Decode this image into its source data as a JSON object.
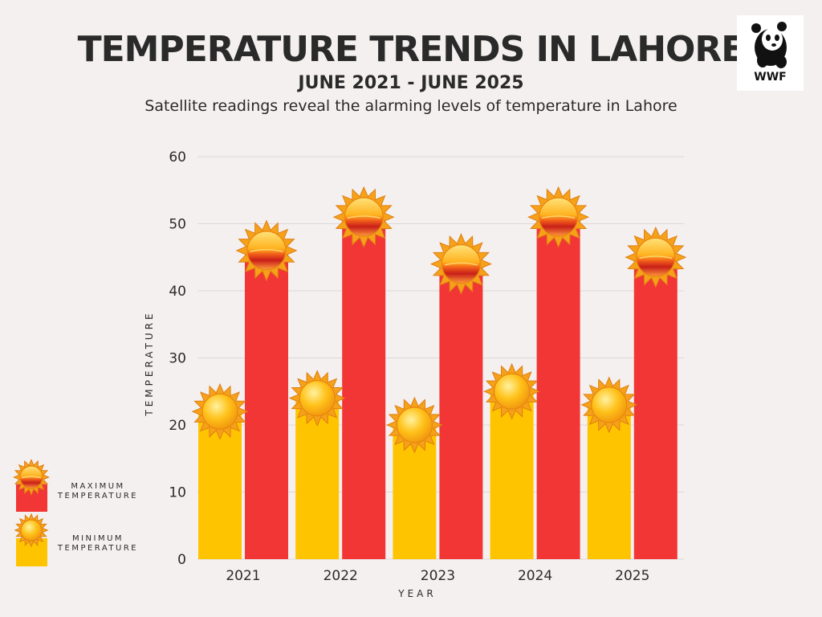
{
  "header": {
    "title": "TEMPERATURE TRENDS IN LAHORE",
    "subtitle": "JUNE 2021 - JUNE 2025",
    "description": "Satellite readings reveal the alarming levels of temperature in Lahore"
  },
  "logo": {
    "text": "WWF",
    "icon": "panda-logo-icon"
  },
  "legend": {
    "items": [
      {
        "label_line1": "MAXIMUM",
        "label_line2": "TEMPERATURE",
        "color": "#f23636",
        "icon": "hot-sun-icon"
      },
      {
        "label_line1": "MINIMUM",
        "label_line2": "TEMPERATURE",
        "color": "#ffc400",
        "icon": "sun-icon"
      }
    ]
  },
  "colors": {
    "max": "#f23636",
    "min": "#ffc400",
    "background": "#f4f0ef",
    "grid": "#dcd8d7"
  },
  "chart_data": {
    "type": "bar",
    "title": "TEMPERATURE TRENDS IN LAHORE",
    "subtitle": "JUNE 2021 - JUNE 2025",
    "xlabel": "YEAR",
    "ylabel": "TEMPERATURE",
    "categories": [
      "2021",
      "2022",
      "2023",
      "2024",
      "2025"
    ],
    "series": [
      {
        "name": "MINIMUM TEMPERATURE",
        "values": [
          22,
          24,
          20,
          25,
          23
        ],
        "color": "#ffc400"
      },
      {
        "name": "MAXIMUM TEMPERATURE",
        "values": [
          46,
          51,
          44,
          51,
          45
        ],
        "color": "#f23636"
      }
    ],
    "ylim": [
      0,
      60
    ],
    "yticks": [
      0,
      10,
      20,
      30,
      40,
      50,
      60
    ],
    "grid": true,
    "legend": "left"
  }
}
